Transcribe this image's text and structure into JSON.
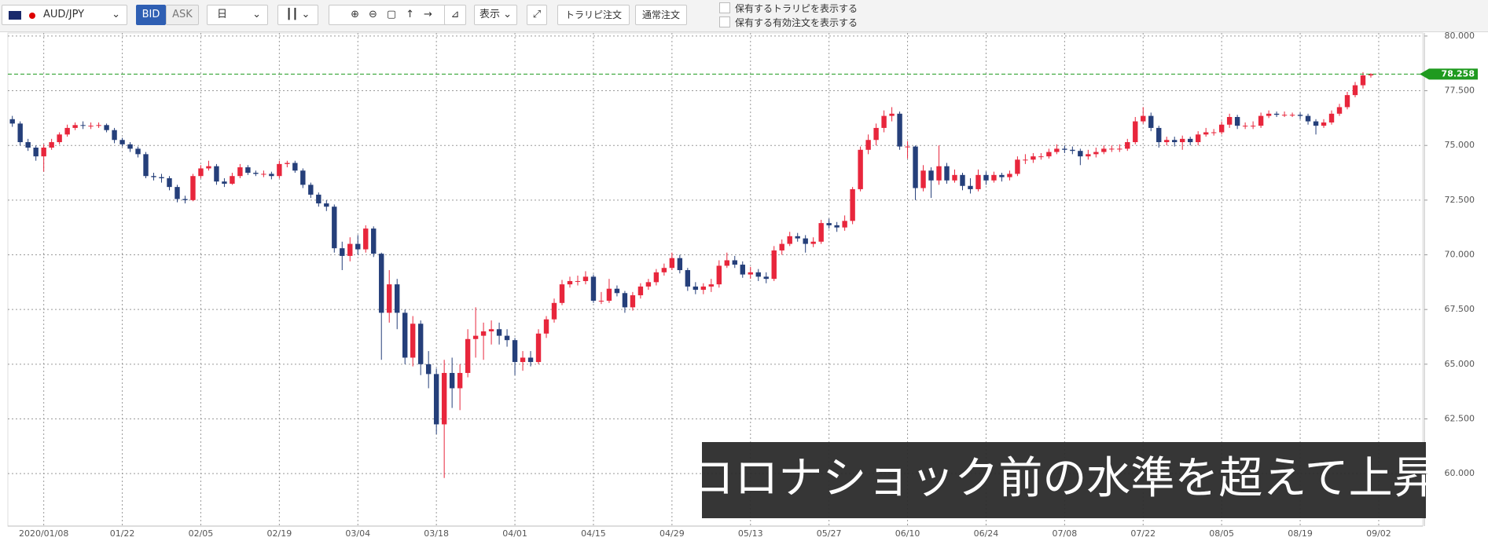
{
  "toolbar": {
    "pair": "AUD/JPY",
    "bid": "BID",
    "ask": "ASK",
    "timeframe": "日",
    "display": "表示",
    "trap_order": "トラリピ注文",
    "normal_order": "通常注文",
    "show_traps": "保有するトラリピを表示する",
    "show_orders": "保有する有効注文を表示する"
  },
  "chart_data": {
    "type": "candlestick",
    "caption": "コロナショック前の水準を超えて上昇",
    "up_color": "#e8263c",
    "down_color": "#253f7a",
    "grid": true,
    "last_price": 78.258,
    "last_price_color": "#1f9a1f",
    "ylim": [
      57.6,
      80.14
    ],
    "yticks": [
      {
        "value": 60,
        "label": "60.000"
      },
      {
        "value": 62.5,
        "label": "62.500"
      },
      {
        "value": 65,
        "label": "65.000"
      },
      {
        "value": 67.5,
        "label": "67.500"
      },
      {
        "value": 70,
        "label": "70.000"
      },
      {
        "value": 72.5,
        "label": "72.500"
      },
      {
        "value": 75,
        "label": "75.000"
      },
      {
        "value": 77.5,
        "label": "77.500"
      },
      {
        "value": 80,
        "label": "80.000"
      }
    ],
    "categories": [
      null,
      null,
      null,
      null,
      "2020/01/08",
      null,
      null,
      null,
      null,
      null,
      null,
      null,
      null,
      null,
      "01/22",
      null,
      null,
      null,
      null,
      null,
      null,
      null,
      null,
      null,
      "02/05",
      null,
      null,
      null,
      null,
      null,
      null,
      null,
      null,
      null,
      "02/19",
      null,
      null,
      null,
      null,
      null,
      null,
      null,
      null,
      null,
      "03/04",
      null,
      null,
      null,
      null,
      null,
      null,
      null,
      null,
      null,
      "03/18",
      null,
      null,
      null,
      null,
      null,
      null,
      null,
      null,
      null,
      "04/01",
      null,
      null,
      null,
      null,
      null,
      null,
      null,
      null,
      null,
      "04/15",
      null,
      null,
      null,
      null,
      null,
      null,
      null,
      null,
      null,
      "04/29",
      null,
      null,
      null,
      null,
      null,
      null,
      null,
      null,
      null,
      "05/13",
      null,
      null,
      null,
      null,
      null,
      null,
      null,
      null,
      null,
      "05/27",
      null,
      null,
      null,
      null,
      null,
      null,
      null,
      null,
      null,
      "06/10",
      null,
      null,
      null,
      null,
      null,
      null,
      null,
      null,
      null,
      "06/24",
      null,
      null,
      null,
      null,
      null,
      null,
      null,
      null,
      null,
      "07/08",
      null,
      null,
      null,
      null,
      null,
      null,
      null,
      null,
      null,
      "07/22",
      null,
      null,
      null,
      null,
      null,
      null,
      null,
      null,
      null,
      "08/05",
      null,
      null,
      null,
      null,
      null,
      null,
      null,
      null,
      null,
      "08/19",
      null,
      null,
      null,
      null,
      null,
      null,
      null,
      null,
      null,
      "09/02"
    ],
    "open": [
      76.2,
      76.0,
      75.15,
      74.9,
      74.5,
      74.9,
      75.15,
      75.5,
      75.8,
      75.93,
      75.9,
      75.9,
      75.93,
      75.7,
      75.25,
      75.05,
      74.85,
      74.6,
      73.6,
      73.55,
      73.5,
      73.1,
      72.55,
      72.5,
      73.6,
      73.95,
      74.05,
      73.35,
      73.25,
      73.6,
      74.0,
      73.75,
      73.7,
      73.7,
      73.6,
      74.15,
      74.2,
      73.85,
      73.2,
      72.75,
      72.35,
      72.2,
      70.3,
      69.95,
      70.5,
      70.25,
      71.2,
      70.05,
      67.35,
      68.65,
      67.35,
      65.3,
      66.85,
      65.0,
      64.55,
      62.25,
      64.6,
      63.9,
      64.6,
      66.15,
      66.3,
      66.5,
      66.6,
      66.3,
      66.1,
      65.1,
      65.3,
      65.1,
      66.4,
      67.05,
      67.8,
      68.65,
      68.8,
      68.8,
      69.0,
      67.9,
      67.9,
      68.45,
      68.25,
      67.6,
      68.15,
      68.55,
      68.75,
      69.2,
      69.4,
      69.85,
      69.3,
      68.55,
      68.4,
      68.55,
      68.65,
      69.5,
      69.75,
      69.55,
      69.1,
      69.2,
      69.0,
      68.9,
      70.2,
      70.5,
      70.85,
      70.75,
      70.5,
      70.6,
      71.45,
      71.35,
      71.25,
      71.55,
      73.0,
      74.8,
      75.25,
      75.8,
      76.35,
      76.45,
      74.95,
      74.95,
      73.05,
      73.85,
      73.4,
      74.05,
      73.4,
      73.65,
      73.15,
      73.0,
      73.65,
      73.4,
      73.65,
      73.55,
      73.7,
      74.35,
      74.35,
      74.5,
      74.5,
      74.7,
      74.85,
      74.8,
      74.75,
      74.5,
      74.6,
      74.7,
      74.85,
      74.85,
      74.85,
      75.15,
      76.1,
      76.35,
      75.8,
      75.15,
      75.25,
      75.15,
      75.3,
      75.15,
      75.5,
      75.6,
      75.6,
      75.95,
      76.3,
      75.9,
      75.9,
      75.9,
      76.35,
      76.45,
      76.4,
      76.4,
      76.4,
      76.35,
      76.1,
      75.9,
      76.05,
      76.45,
      76.75,
      77.3,
      77.75,
      78.2,
      null
    ],
    "high": [
      76.35,
      76.1,
      75.3,
      75.0,
      75.05,
      75.3,
      75.6,
      75.95,
      76.05,
      76.1,
      76.05,
      76.05,
      76.0,
      75.8,
      75.35,
      75.15,
      74.95,
      74.7,
      73.75,
      73.7,
      73.6,
      73.2,
      72.7,
      73.7,
      74.1,
      74.3,
      74.15,
      73.5,
      73.75,
      74.15,
      74.1,
      73.85,
      73.85,
      73.8,
      74.3,
      74.3,
      74.3,
      73.95,
      73.3,
      72.85,
      72.5,
      72.3,
      70.6,
      70.8,
      70.9,
      71.35,
      71.3,
      70.1,
      69.3,
      68.9,
      67.5,
      67.2,
      67.0,
      65.6,
      64.8,
      65.2,
      65.3,
      65.0,
      66.6,
      67.6,
      66.9,
      67.0,
      66.9,
      66.6,
      66.2,
      65.6,
      65.6,
      66.6,
      67.2,
      68.0,
      68.85,
      69.0,
      69.05,
      69.25,
      69.1,
      68.3,
      68.9,
      68.6,
      68.35,
      68.3,
      68.7,
      68.9,
      69.35,
      69.6,
      70.1,
      70.0,
      69.4,
      68.75,
      68.7,
      68.9,
      69.75,
      70.1,
      69.95,
      69.7,
      69.45,
      69.35,
      69.2,
      70.4,
      70.7,
      71.05,
      71.0,
      70.9,
      70.8,
      71.6,
      71.65,
      71.5,
      71.8,
      73.1,
      74.95,
      75.5,
      76.0,
      76.6,
      76.75,
      76.55,
      75.2,
      75.0,
      74.1,
      74.0,
      75.0,
      74.2,
      73.9,
      73.75,
      73.5,
      73.9,
      73.8,
      73.8,
      73.75,
      73.85,
      74.5,
      74.6,
      74.65,
      74.65,
      74.85,
      75.05,
      75.0,
      74.95,
      74.85,
      74.8,
      74.9,
      75.0,
      75.0,
      75.05,
      75.3,
      76.3,
      76.75,
      76.5,
      75.9,
      75.4,
      75.4,
      75.45,
      75.4,
      75.65,
      75.8,
      75.75,
      76.1,
      76.45,
      76.4,
      76.05,
      76.1,
      76.5,
      76.6,
      76.55,
      76.55,
      76.5,
      76.5,
      76.45,
      76.2,
      76.2,
      76.6,
      76.9,
      77.45,
      77.9,
      78.35,
      78.3,
      null
    ],
    "low": [
      75.85,
      75.0,
      74.75,
      74.3,
      73.8,
      74.8,
      75.05,
      75.4,
      75.7,
      75.75,
      75.75,
      75.8,
      75.6,
      75.1,
      74.95,
      74.7,
      74.45,
      73.5,
      73.4,
      73.3,
      72.95,
      72.4,
      72.35,
      72.45,
      73.5,
      73.85,
      73.2,
      73.1,
      73.2,
      73.5,
      73.65,
      73.6,
      73.55,
      73.45,
      73.5,
      74.0,
      73.75,
      73.05,
      72.6,
      72.2,
      72.0,
      70.1,
      69.3,
      69.7,
      70.0,
      70.1,
      69.9,
      65.2,
      66.9,
      66.6,
      65.0,
      64.9,
      64.5,
      63.9,
      61.8,
      59.8,
      63.0,
      62.9,
      64.4,
      65.3,
      65.2,
      65.9,
      65.9,
      65.8,
      64.5,
      64.7,
      64.9,
      65.0,
      66.2,
      66.9,
      67.7,
      68.5,
      68.6,
      68.65,
      67.8,
      67.75,
      67.8,
      68.1,
      67.35,
      67.45,
      68.0,
      68.4,
      68.6,
      69.05,
      69.3,
      69.15,
      68.35,
      68.2,
      68.2,
      68.3,
      68.5,
      69.4,
      69.4,
      68.95,
      68.9,
      68.8,
      68.7,
      68.8,
      70.0,
      70.4,
      70.6,
      70.1,
      70.35,
      70.5,
      71.2,
      71.05,
      71.1,
      71.4,
      72.9,
      74.6,
      75.0,
      75.6,
      76.1,
      74.8,
      74.4,
      72.5,
      72.9,
      72.6,
      73.2,
      73.25,
      73.3,
      72.95,
      72.8,
      72.9,
      73.2,
      73.3,
      73.35,
      73.4,
      73.6,
      74.15,
      74.2,
      74.35,
      74.4,
      74.6,
      74.65,
      74.6,
      74.1,
      74.35,
      74.45,
      74.6,
      74.7,
      74.7,
      74.75,
      75.05,
      76.0,
      75.65,
      74.9,
      75.0,
      74.95,
      74.8,
      75.0,
      75.0,
      75.4,
      75.45,
      75.5,
      75.8,
      75.75,
      75.75,
      75.75,
      75.8,
      76.25,
      76.3,
      76.3,
      76.3,
      76.2,
      75.95,
      75.5,
      75.8,
      75.95,
      76.35,
      76.65,
      77.2,
      77.6,
      78.1,
      null
    ],
    "close": [
      76.0,
      75.15,
      74.9,
      74.5,
      74.9,
      75.15,
      75.5,
      75.8,
      75.93,
      75.9,
      75.9,
      75.93,
      75.7,
      75.25,
      75.05,
      74.85,
      74.6,
      73.6,
      73.55,
      73.5,
      73.1,
      72.55,
      72.5,
      73.6,
      73.95,
      74.05,
      73.35,
      73.25,
      73.6,
      74.0,
      73.75,
      73.7,
      73.7,
      73.6,
      74.15,
      74.2,
      73.85,
      73.2,
      72.75,
      72.35,
      72.2,
      70.3,
      69.95,
      70.5,
      70.25,
      71.2,
      70.05,
      67.35,
      68.65,
      67.35,
      65.3,
      66.85,
      65.0,
      64.55,
      62.25,
      64.6,
      63.9,
      64.6,
      66.15,
      66.3,
      66.5,
      66.6,
      66.3,
      66.1,
      65.1,
      65.3,
      65.1,
      66.4,
      67.05,
      67.8,
      68.65,
      68.8,
      68.8,
      69.0,
      67.9,
      67.9,
      68.45,
      68.25,
      67.6,
      68.15,
      68.55,
      68.75,
      69.2,
      69.4,
      69.85,
      69.3,
      68.55,
      68.4,
      68.55,
      68.65,
      69.5,
      69.75,
      69.55,
      69.1,
      69.2,
      69.0,
      68.9,
      70.2,
      70.5,
      70.85,
      70.75,
      70.5,
      70.6,
      71.45,
      71.35,
      71.25,
      71.55,
      73.0,
      74.8,
      75.25,
      75.8,
      76.35,
      76.45,
      74.95,
      74.95,
      73.05,
      73.85,
      73.4,
      74.05,
      73.4,
      73.65,
      73.15,
      73.0,
      73.65,
      73.4,
      73.65,
      73.55,
      73.7,
      74.35,
      74.35,
      74.5,
      74.5,
      74.7,
      74.85,
      74.8,
      74.75,
      74.5,
      74.6,
      74.7,
      74.85,
      74.85,
      74.85,
      75.15,
      76.1,
      76.35,
      75.8,
      75.15,
      75.25,
      75.15,
      75.3,
      75.15,
      75.5,
      75.6,
      75.6,
      75.95,
      76.3,
      75.9,
      75.9,
      75.9,
      76.35,
      76.45,
      76.4,
      76.4,
      76.4,
      76.35,
      76.1,
      75.9,
      76.05,
      76.45,
      76.75,
      77.3,
      77.75,
      78.2,
      78.258,
      null
    ]
  }
}
